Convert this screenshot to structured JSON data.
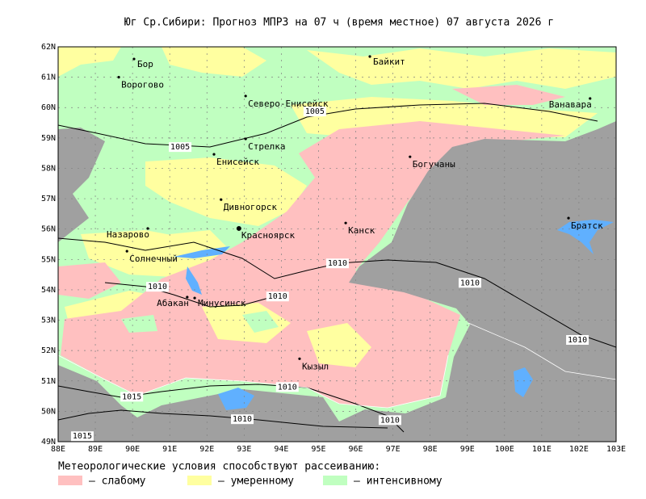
{
  "map": {
    "title": "Юг Ср.Сибири:  Прогноз МПРЗ на 07 ч (время местное) 07 августа 2026 г",
    "lon_range": [
      88,
      103
    ],
    "lat_range": [
      49,
      62
    ],
    "lat_ticks": [
      {
        "value": 49,
        "label": "49N"
      },
      {
        "value": 50,
        "label": "50N"
      },
      {
        "value": 51,
        "label": "51N"
      },
      {
        "value": 52,
        "label": "52N"
      },
      {
        "value": 53,
        "label": "53N"
      },
      {
        "value": 54,
        "label": "54N"
      },
      {
        "value": 55,
        "label": "55N"
      },
      {
        "value": 56,
        "label": "56N"
      },
      {
        "value": 57,
        "label": "57N"
      },
      {
        "value": 58,
        "label": "58N"
      },
      {
        "value": 59,
        "label": "59N"
      },
      {
        "value": 60,
        "label": "60N"
      },
      {
        "value": 61,
        "label": "61N"
      },
      {
        "value": 62,
        "label": "62N"
      }
    ],
    "lon_ticks": [
      {
        "value": 88,
        "label": "88E"
      },
      {
        "value": 89,
        "label": "89E"
      },
      {
        "value": 90,
        "label": "90E"
      },
      {
        "value": 91,
        "label": "91E"
      },
      {
        "value": 92,
        "label": "92E"
      },
      {
        "value": 93,
        "label": "93E"
      },
      {
        "value": 94,
        "label": "94E"
      },
      {
        "value": 95,
        "label": "95E"
      },
      {
        "value": 96,
        "label": "96E"
      },
      {
        "value": 97,
        "label": "97E"
      },
      {
        "value": 98,
        "label": "98E"
      },
      {
        "value": 99,
        "label": "99E"
      },
      {
        "value": 100,
        "label": "100E"
      },
      {
        "value": 101,
        "label": "101E"
      },
      {
        "value": 102,
        "label": "102E"
      },
      {
        "value": 103,
        "label": "103E"
      }
    ],
    "cities": [
      {
        "name": "Бор",
        "lon": 90.04,
        "lat": 61.6,
        "side": "right"
      },
      {
        "name": "Ворогово",
        "lon": 89.63,
        "lat": 61.0,
        "side": "below"
      },
      {
        "name": "Байкит",
        "lon": 96.38,
        "lat": 61.68,
        "side": "right"
      },
      {
        "name": "Северо-Енисейск",
        "lon": 93.04,
        "lat": 60.38,
        "side": "below"
      },
      {
        "name": "Ванавара",
        "lon": 102.3,
        "lat": 60.3,
        "side": "left"
      },
      {
        "name": "Стрелка",
        "lon": 93.04,
        "lat": 58.97,
        "side": "below"
      },
      {
        "name": "Енисейск",
        "lon": 92.19,
        "lat": 58.46,
        "side": "below"
      },
      {
        "name": "Богучаны",
        "lon": 97.46,
        "lat": 58.38,
        "side": "below"
      },
      {
        "name": "Дивногорск",
        "lon": 92.38,
        "lat": 56.97,
        "side": "below"
      },
      {
        "name": "Красноярск",
        "lon": 92.86,
        "lat": 56.02,
        "side": "big"
      },
      {
        "name": "Канск",
        "lon": 95.73,
        "lat": 56.2,
        "side": "below"
      },
      {
        "name": "Братск",
        "lon": 101.72,
        "lat": 56.36,
        "side": "below"
      },
      {
        "name": "Назарово",
        "lon": 90.41,
        "lat": 56.02,
        "side": "left"
      },
      {
        "name": "Солнечный",
        "lon": 89.85,
        "lat": 55.27,
        "side": "below"
      },
      {
        "name": "Абакан",
        "lon": 91.47,
        "lat": 53.76,
        "side": "left"
      },
      {
        "name": "Минусинск",
        "lon": 91.67,
        "lat": 53.73,
        "side": "right"
      },
      {
        "name": "Кызыл",
        "lon": 94.49,
        "lat": 51.73,
        "side": "below"
      }
    ],
    "isobars": [
      {
        "value": 1005,
        "lon": 94.9,
        "lat": 59.87
      },
      {
        "value": 1005,
        "lon": 91.28,
        "lat": 58.7
      },
      {
        "value": 1010,
        "lon": 95.51,
        "lat": 54.87
      },
      {
        "value": 1010,
        "lon": 90.67,
        "lat": 54.1
      },
      {
        "value": 1010,
        "lon": 93.9,
        "lat": 53.78
      },
      {
        "value": 1010,
        "lon": 99.07,
        "lat": 54.23
      },
      {
        "value": 1010,
        "lon": 101.96,
        "lat": 52.35
      },
      {
        "value": 1010,
        "lon": 94.16,
        "lat": 50.8
      },
      {
        "value": 1015,
        "lon": 89.98,
        "lat": 50.48
      },
      {
        "value": 1010,
        "lon": 92.95,
        "lat": 49.74
      },
      {
        "value": 1010,
        "lon": 96.92,
        "lat": 49.71
      },
      {
        "value": 1015,
        "lon": 88.65,
        "lat": 49.18
      }
    ],
    "legend": {
      "caption": "Метеорологические условия способствуют рассеиванию:",
      "items": [
        {
          "label": "– слабому",
          "color": "#ffc0c0"
        },
        {
          "label": "– умеренному",
          "color": "#ffffa0"
        },
        {
          "label": "– интенсивному",
          "color": "#c0ffc0"
        }
      ]
    }
  }
}
